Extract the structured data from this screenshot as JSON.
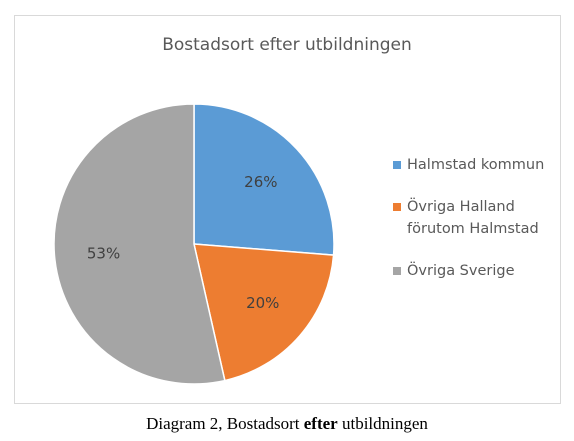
{
  "chart_data": {
    "type": "pie",
    "title": "Bostadsort efter utbildningen",
    "categories": [
      "Halmstad kommun",
      "Övriga Halland förutom Halmstad",
      "Övriga Sverige"
    ],
    "values": [
      26,
      20,
      53
    ],
    "value_labels": [
      "26%",
      "20%",
      "53%"
    ],
    "colors": [
      "#5b9bd5",
      "#ed7d31",
      "#a5a5a5"
    ],
    "legend": "right"
  },
  "caption": {
    "before": "Diagram 2, Bostadsort",
    "bold": "efter",
    "after": "utbildningen"
  }
}
